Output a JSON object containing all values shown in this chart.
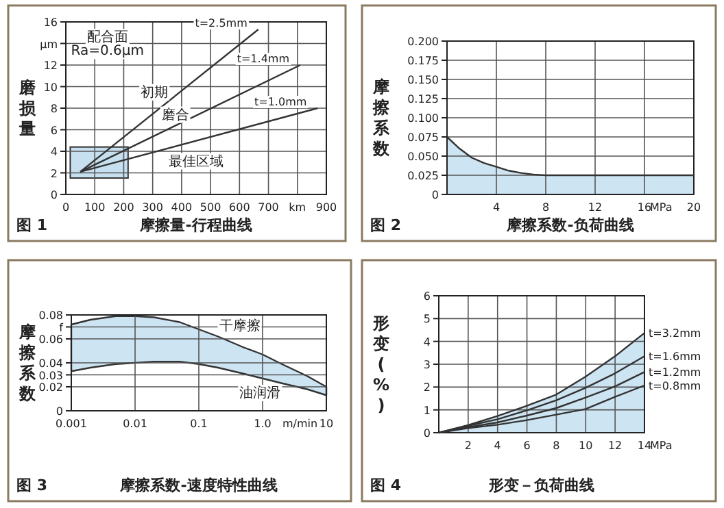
{
  "chart_data": [
    {
      "type": "line",
      "xlabel": "摩擦量-行程曲线",
      "ylabel": "磨损量",
      "xlim": [
        0,
        900
      ],
      "ylim": [
        0,
        16
      ],
      "xticks": [
        0,
        100,
        200,
        300,
        400,
        500,
        600,
        700,
        {
          "value": 800,
          "label": "km"
        },
        900
      ],
      "yticks": [
        0,
        2,
        4,
        6,
        8,
        10,
        12,
        {
          "value": 14,
          "label": "μm"
        },
        16
      ],
      "grid": true,
      "series": [
        {
          "name": "t=2.5mm",
          "color": "#333333",
          "x": [
            50,
            665
          ],
          "values": [
            2.1,
            15.3
          ]
        },
        {
          "name": "t=1.4mm",
          "color": "#333333",
          "x": [
            50,
            810
          ],
          "values": [
            2.1,
            12
          ]
        },
        {
          "name": "t=1.0mm",
          "color": "#333333",
          "x": [
            50,
            870
          ],
          "values": [
            2.1,
            8
          ]
        }
      ],
      "annotations": [
        "图 1",
        "配合面",
        "Ra=0.6μm",
        "初期",
        "磨合",
        "最佳区域"
      ]
    },
    {
      "type": "area",
      "xlabel": "摩擦系数-负荷曲线",
      "ylabel": "摩擦系数",
      "xlim": [
        0,
        20
      ],
      "ylim": [
        0,
        0.2
      ],
      "xticks": [
        {
          "value": 0,
          "label": null
        },
        4,
        8,
        12,
        16,
        20
      ],
      "yticks": [
        0,
        {
          "value": 0.025,
          "label": "0.025"
        },
        {
          "value": 0.05,
          "label": "0.050"
        },
        {
          "value": 0.075,
          "label": "0.075"
        },
        {
          "value": 0.1,
          "label": "0.100"
        },
        {
          "value": 0.125,
          "label": "0.125"
        },
        {
          "value": 0.15,
          "label": "0.150"
        },
        {
          "value": 0.175,
          "label": "0.175"
        },
        {
          "value": 0.2,
          "label": "0.200"
        }
      ],
      "grid": true,
      "x": [
        0,
        1,
        2,
        3,
        4,
        5,
        6,
        7,
        8,
        20
      ],
      "series": [
        {
          "color": "#cde4f2",
          "values": [
            0.075,
            0.06,
            0.048,
            0.041,
            0.036,
            0.031,
            0.028,
            0.026,
            0.025,
            0.025
          ]
        }
      ],
      "annotations": [
        "图 2",
        "MPa"
      ]
    },
    {
      "type": "line",
      "log": "x",
      "xlabel": "摩擦系数-速度特性曲线",
      "ylabel": "摩擦系数",
      "xlim": [
        0.001,
        10
      ],
      "ylim": [
        0,
        0.08
      ],
      "xticks": [
        0.001,
        0.01,
        0.1,
        {
          "value": 1,
          "label": "1.0"
        },
        10
      ],
      "yticks": [
        0,
        0.02,
        0.03,
        0.04,
        0.06,
        {
          "value": 0.07,
          "label": "f"
        },
        0.08
      ],
      "grid": true,
      "x": [
        0.001,
        0.002,
        0.005,
        0.01,
        0.02,
        0.05,
        0.1,
        0.2,
        0.5,
        1,
        2,
        5,
        10
      ],
      "series": [
        {
          "color": "#cde4f2",
          "values": [
            null,
            null,
            null,
            null,
            null,
            null,
            null,
            null,
            null,
            null,
            null,
            null,
            null
          ],
          "upper": [
            0.072,
            0.076,
            0.079,
            0.079,
            0.078,
            0.074,
            0.068,
            0.062,
            0.053,
            0.047,
            0.039,
            0.029,
            0.02
          ],
          "lower": [
            0.033,
            0.036,
            0.039,
            0.04,
            0.041,
            0.041,
            0.039,
            0.036,
            0.031,
            0.027,
            0.023,
            0.018,
            0.013
          ]
        }
      ],
      "annotations": [
        "图 3",
        "m/min",
        "干摩擦",
        "油润滑"
      ]
    },
    {
      "type": "line",
      "xlabel": "形变－负荷曲线",
      "ylabel": "形变(%)",
      "xlim": [
        0,
        14
      ],
      "ylim": [
        0,
        6
      ],
      "xticks": [
        {
          "value": 0,
          "label": null
        },
        2,
        4,
        6,
        8,
        10,
        12,
        14
      ],
      "yticks": [
        0,
        1,
        2,
        3,
        4,
        5,
        6
      ],
      "grid": true,
      "x": [
        0,
        2,
        4,
        6,
        8,
        10,
        12,
        14
      ],
      "series": [
        {
          "name": "t=3.2mm",
          "type": "area",
          "color": "#cde4f2",
          "values": [
            0,
            0.33,
            0.73,
            1.18,
            1.67,
            2.46,
            3.35,
            4.37
          ]
        },
        {
          "name": "t=1.6mm",
          "color": "#333333",
          "values": [
            0,
            0.3,
            0.59,
            0.98,
            1.42,
            1.97,
            2.6,
            3.35
          ]
        },
        {
          "name": "t=1.2mm",
          "color": "#333333",
          "values": [
            0,
            0.24,
            0.45,
            0.75,
            1.08,
            1.54,
            2.03,
            2.66
          ]
        },
        {
          "name": "t=0.8mm",
          "color": "#333333",
          "values": [
            0,
            0.2,
            0.35,
            0.55,
            0.79,
            1.04,
            1.57,
            2.07
          ]
        }
      ],
      "annotations": [
        "图 4",
        "MPa"
      ]
    }
  ]
}
